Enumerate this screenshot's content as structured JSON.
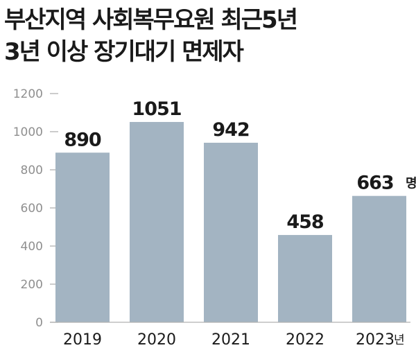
{
  "title": {
    "line1": "부산지역 사회복무요원 최근5년",
    "line2": "3년 이상 장기대기 면제자"
  },
  "chart_data": {
    "type": "bar",
    "categories": [
      "2019",
      "2020",
      "2021",
      "2022",
      "2023"
    ],
    "values": [
      890,
      1051,
      942,
      458,
      663
    ],
    "value_unit": "명",
    "category_unit": "년",
    "ylim": [
      0,
      1200
    ],
    "yticks": [
      0,
      200,
      400,
      600,
      800,
      1000,
      1200
    ],
    "grid": false,
    "bar_color": "#a3b4c2",
    "axis_color": "#b0b0b0"
  }
}
